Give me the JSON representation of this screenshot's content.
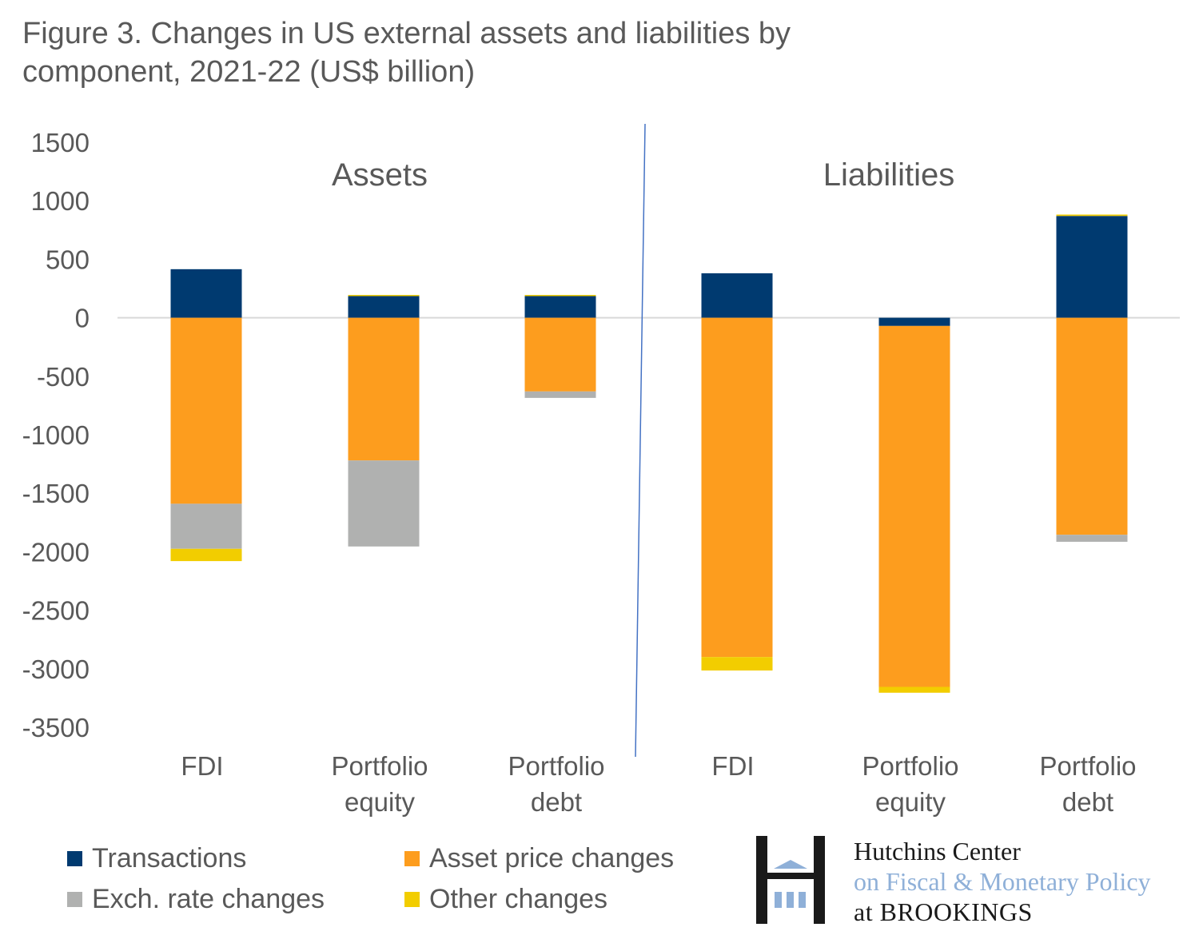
{
  "title": "Figure 3. Changes in US external assets and liabilities by component, 2021-22 (US$ billion)",
  "title_line1": "Figure 3. Changes in US external assets and liabilities by",
  "title_line2": "component, 2021-22 (US$ billion)",
  "chart_data": {
    "type": "bar",
    "stacked": true,
    "title": "Figure 3. Changes in US external assets and liabilities by component, 2021-22 (US$ billion)",
    "xlabel": "",
    "ylabel": "",
    "ylim": [
      -3500,
      1500
    ],
    "yticks": [
      1500,
      1000,
      500,
      0,
      -500,
      -1000,
      -1500,
      -2000,
      -2500,
      -3000,
      -3500
    ],
    "grid": false,
    "legend_position": "bottom-left",
    "groups": [
      {
        "label": "Assets",
        "categories": [
          0,
          1,
          2
        ]
      },
      {
        "label": "Liabilities",
        "categories": [
          3,
          4,
          5
        ]
      }
    ],
    "categories": [
      [
        "FDI"
      ],
      [
        "Portfolio",
        "equity"
      ],
      [
        "Portfolio",
        "debt"
      ],
      [
        "FDI"
      ],
      [
        "Portfolio",
        "equity"
      ],
      [
        "Portfolio",
        "debt"
      ]
    ],
    "series": [
      {
        "name": "Transactions",
        "color": "#003a70",
        "values": [
          415,
          185,
          185,
          380,
          -70,
          870
        ]
      },
      {
        "name": "Asset price changes",
        "color": "#fd9d1e",
        "values": [
          -1590,
          -1220,
          -630,
          -2900,
          -3085,
          -1855
        ]
      },
      {
        "name": "Exch. rate changes",
        "color": "#b0b1b0",
        "values": [
          -385,
          -735,
          -55,
          0,
          0,
          -60
        ]
      },
      {
        "name": "Other changes",
        "color": "#f2cd00",
        "values": [
          -105,
          10,
          10,
          -115,
          -50,
          12
        ]
      }
    ]
  },
  "legend": [
    {
      "label": "Transactions",
      "color": "#003a70"
    },
    {
      "label": "Asset price changes",
      "color": "#fd9d1e"
    },
    {
      "label": "Exch. rate changes",
      "color": "#b0b1b0"
    },
    {
      "label": "Other changes",
      "color": "#f2cd00"
    }
  ],
  "logo": {
    "line1": "Hutchins Center",
    "line2": "on Fiscal & Monetary Policy",
    "line3": "at BROOKINGS",
    "icon": "hutchins-h-building-icon",
    "dark_color": "#1a1a1a",
    "accent_color": "#8fb0d8"
  },
  "colors": {
    "text": "#595959",
    "divider": "#4472c4",
    "zero_line": "#d9d9d9"
  }
}
